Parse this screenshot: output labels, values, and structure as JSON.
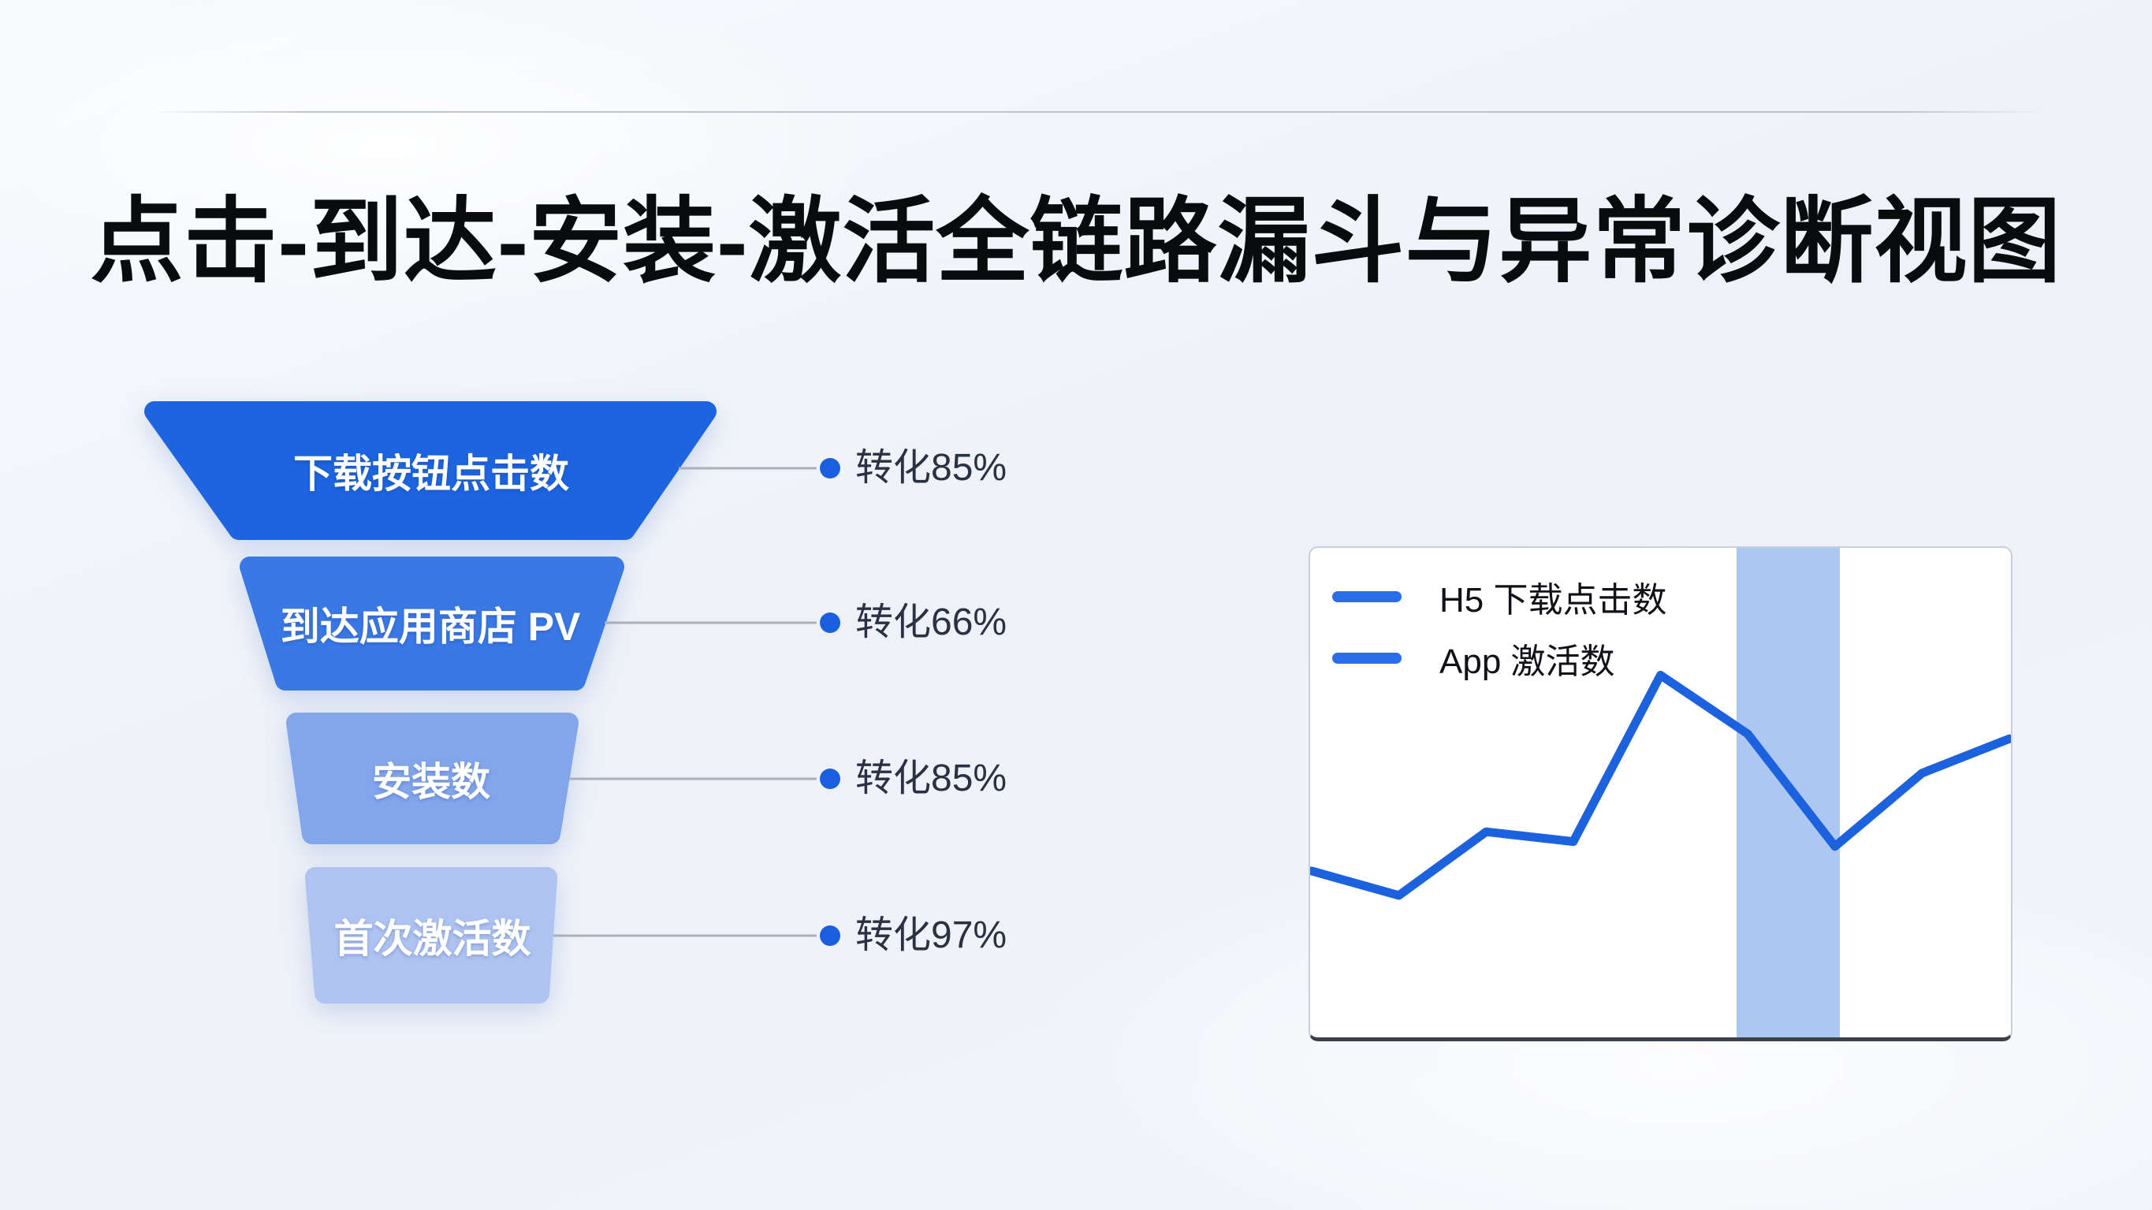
{
  "page": {
    "title": "点击-到达-安装-激活全链路漏斗与异常诊断视图"
  },
  "funnel": {
    "stages": [
      {
        "label": "下载按钮点击数",
        "conversion": "转化85%",
        "color": "#1d64e0"
      },
      {
        "label": "到达应用商店 PV",
        "conversion": "转化66%",
        "color": "#3a78e6"
      },
      {
        "label": "安装数",
        "conversion": "转化85%",
        "color": "#82a5ec"
      },
      {
        "label": "首次激活数",
        "conversion": "转化97%",
        "color": "#aec3f1"
      }
    ],
    "dot_color": "#1b5fe0",
    "connector_color": "#a9b0ba"
  },
  "chart_data": {
    "type": "line",
    "title": "",
    "legend": [
      {
        "label": "H5 下载点击数",
        "color": "#2b6de8"
      },
      {
        "label": "App 激活数",
        "color": "#2b6de8"
      }
    ],
    "x": [
      1,
      2,
      3,
      4,
      5,
      6,
      7,
      8,
      9
    ],
    "series": [
      {
        "name": "H5 下载点击数",
        "values": [
          34,
          29,
          42,
          40,
          74,
          62,
          39,
          54,
          61
        ]
      },
      {
        "name": "App 激活数",
        "values": [
          34,
          29,
          42,
          40,
          74,
          62,
          39,
          54,
          61
        ]
      }
    ],
    "note": "图中两条图例同为蓝色，画面上仅可见一条折线（两序列重合）",
    "ylim": [
      0,
      100
    ],
    "grid": false,
    "axis_tick_labels": "none",
    "line_color": "#1c61dd",
    "highlight_band": {
      "x_start_index": 5.87,
      "x_end_index": 7.05,
      "color": "#a9c4f2",
      "opacity": 0.95
    },
    "legend_position": "top-left-inside",
    "plot_border_color": "#c9cfda",
    "bottom_axis_color": "#3a414d"
  }
}
